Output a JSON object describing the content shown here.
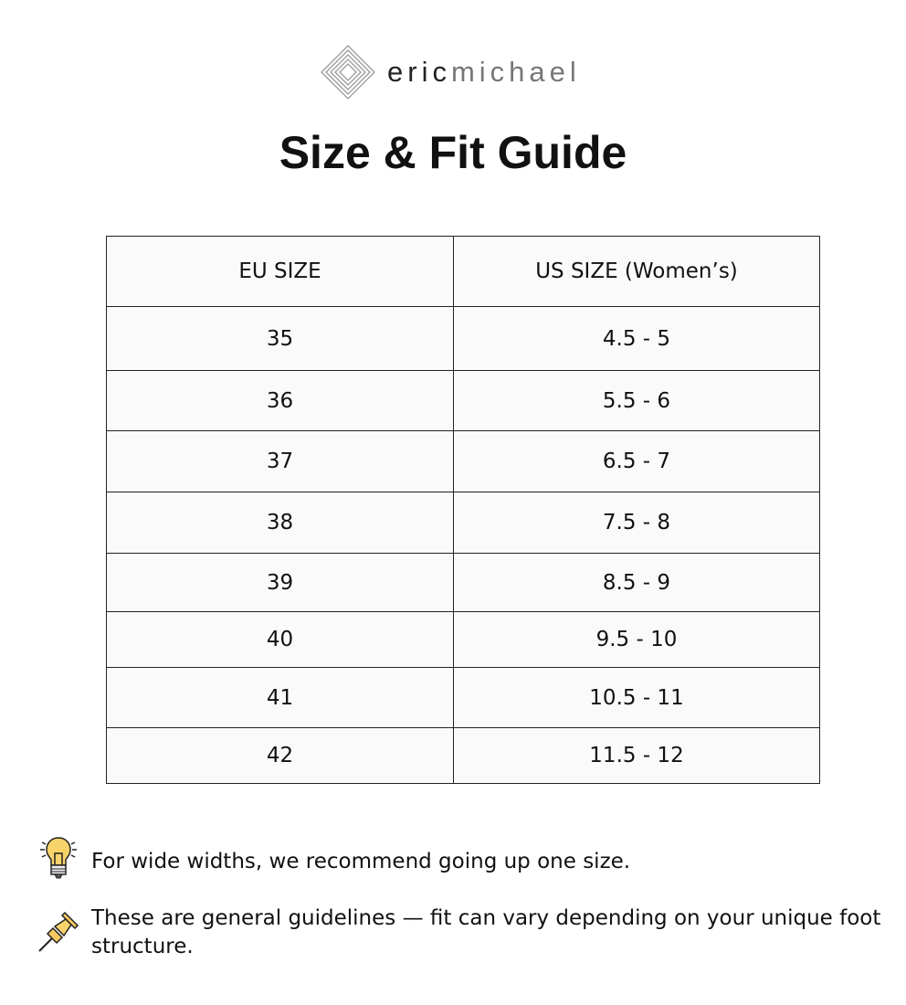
{
  "brand": {
    "part1": "eric",
    "part2": "michael"
  },
  "title": "Size & Fit Guide",
  "table": {
    "headers": [
      "EU SIZE",
      "US SIZE (Women’s)"
    ],
    "rows": [
      [
        "35",
        "4.5 - 5"
      ],
      [
        "36",
        "5.5 - 6"
      ],
      [
        "37",
        "6.5 - 7"
      ],
      [
        "38",
        "7.5 - 8"
      ],
      [
        "39",
        "8.5 - 9"
      ],
      [
        "40",
        "9.5 - 10"
      ],
      [
        "41",
        "10.5 - 11"
      ],
      [
        "42",
        "11.5 - 12"
      ]
    ]
  },
  "notes": [
    {
      "icon": "lightbulb-icon",
      "text": "For wide widths, we recommend going up one size."
    },
    {
      "icon": "pushpin-icon",
      "text": "These are general guidelines — fit can vary depending on your unique foot structure."
    }
  ]
}
